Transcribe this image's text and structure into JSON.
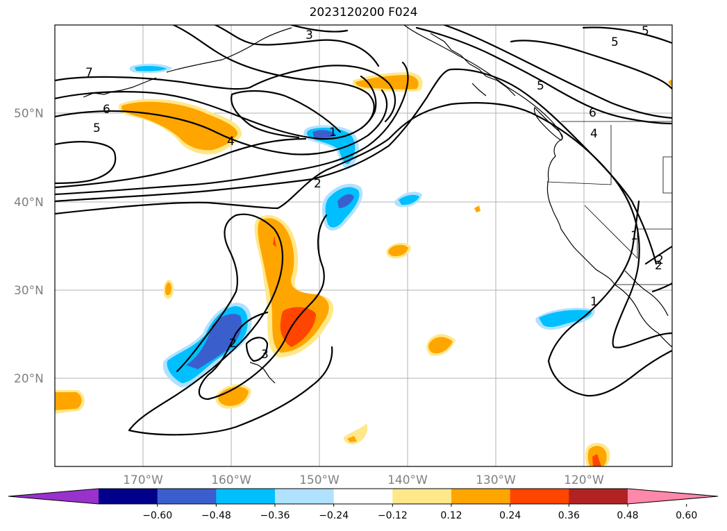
{
  "title": "2023120200 F024",
  "lat_labels": [
    "50°N",
    "40°N",
    "30°N",
    "20°N"
  ],
  "lon_labels": [
    "170°W",
    "160°W",
    "150°W",
    "140°W",
    "130°W",
    "120°W"
  ],
  "contour_labels": [
    "7",
    "6",
    "5",
    "4",
    "3",
    "2",
    "1",
    "5",
    "5",
    "5",
    "6",
    "4",
    "1",
    "2",
    "2",
    "3",
    "1",
    "2"
  ],
  "colorbar": {
    "ticks": [
      "−0.60",
      "−0.48",
      "−0.36",
      "−0.24",
      "−0.12",
      "0.12",
      "0.24",
      "0.36",
      "0.48",
      "0.60"
    ],
    "colors": [
      "#9932cc",
      "#00008b",
      "#3a5fcd",
      "#00bfff",
      "#b0e2ff",
      "#ffffff",
      "#ffe88a",
      "#ffa500",
      "#ff4500",
      "#b22222",
      "#ff88aa"
    ]
  },
  "map_data": {
    "extent_lon": [
      -180,
      -110
    ],
    "extent_lat": [
      10,
      60
    ],
    "gridlines": true,
    "shading_colors": {
      "weak_pos": "#ffe88a",
      "mid_pos": "#ffa500",
      "strong_pos": "#ff4500",
      "weak_neg": "#b0e2ff",
      "mid_neg": "#00bfff",
      "strong_neg": "#3a5fcd"
    }
  }
}
